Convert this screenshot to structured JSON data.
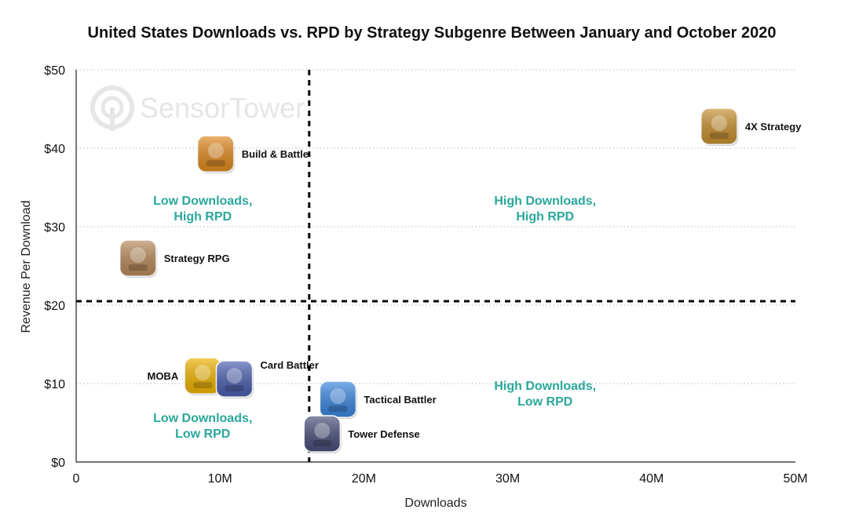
{
  "chart_data": {
    "type": "scatter",
    "title": "United States Downloads vs. RPD by Strategy Subgenre Between January and October 2020",
    "xlabel": "Downloads",
    "ylabel": "Revenue Per Download",
    "xlim": [
      0,
      50000000
    ],
    "ylim": [
      0,
      50
    ],
    "x_ticks": [
      {
        "value": 0,
        "label": "0"
      },
      {
        "value": 10000000,
        "label": "10M"
      },
      {
        "value": 20000000,
        "label": "20M"
      },
      {
        "value": 30000000,
        "label": "30M"
      },
      {
        "value": 40000000,
        "label": "40M"
      },
      {
        "value": 50000000,
        "label": "50M"
      }
    ],
    "y_ticks": [
      {
        "value": 0,
        "label": "$0"
      },
      {
        "value": 10,
        "label": "$10"
      },
      {
        "value": 20,
        "label": "$20"
      },
      {
        "value": 30,
        "label": "$30"
      },
      {
        "value": 40,
        "label": "$40"
      },
      {
        "value": 50,
        "label": "$50"
      }
    ],
    "grid": "horizontal-dotted",
    "divider_x": 16200000,
    "divider_y": 20.5,
    "points": [
      {
        "label": "4X Strategy",
        "x": 44700000,
        "y": 42.8,
        "icon": "4x-strategy-game-icon",
        "label_side": "right",
        "color": "#c8902f"
      },
      {
        "label": "Build & Battle",
        "x": 9700000,
        "y": 39.3,
        "icon": "build-and-battle-game-icon",
        "label_side": "right",
        "color": "#e08a1f"
      },
      {
        "label": "Strategy RPG",
        "x": 4300000,
        "y": 26.0,
        "icon": "strategy-rpg-game-icon",
        "label_side": "right",
        "color": "#b88a5a"
      },
      {
        "label": "MOBA",
        "x": 8800000,
        "y": 11.0,
        "icon": "moba-game-icon",
        "label_side": "left",
        "color": "#f0b400"
      },
      {
        "label": "Card Battler",
        "x": 11000000,
        "y": 10.6,
        "icon": "card-battler-game-icon",
        "label_side": "right-top",
        "color": "#4a5fb0"
      },
      {
        "label": "Tactical Battler",
        "x": 18200000,
        "y": 8.0,
        "icon": "tactical-battler-game-icon",
        "label_side": "right",
        "color": "#3a86e0"
      },
      {
        "label": "Tower Defense",
        "x": 17100000,
        "y": 3.6,
        "icon": "tower-defense-game-icon",
        "label_side": "right",
        "color": "#4a4f7a"
      }
    ],
    "quadrant_labels": [
      {
        "lines": [
          "Low Downloads,",
          "High RPD"
        ],
        "x": 8800000,
        "y": 32.8
      },
      {
        "lines": [
          "High Downloads,",
          "High RPD"
        ],
        "x": 32600000,
        "y": 32.8
      },
      {
        "lines": [
          "High Downloads,",
          "Low RPD"
        ],
        "x": 32600000,
        "y": 9.2
      },
      {
        "lines": [
          "Low Downloads,",
          "Low RPD"
        ],
        "x": 8800000,
        "y": 5.1
      }
    ]
  },
  "watermark": {
    "text": "SensorTower",
    "icon": "sensor-tower-logo-icon"
  }
}
